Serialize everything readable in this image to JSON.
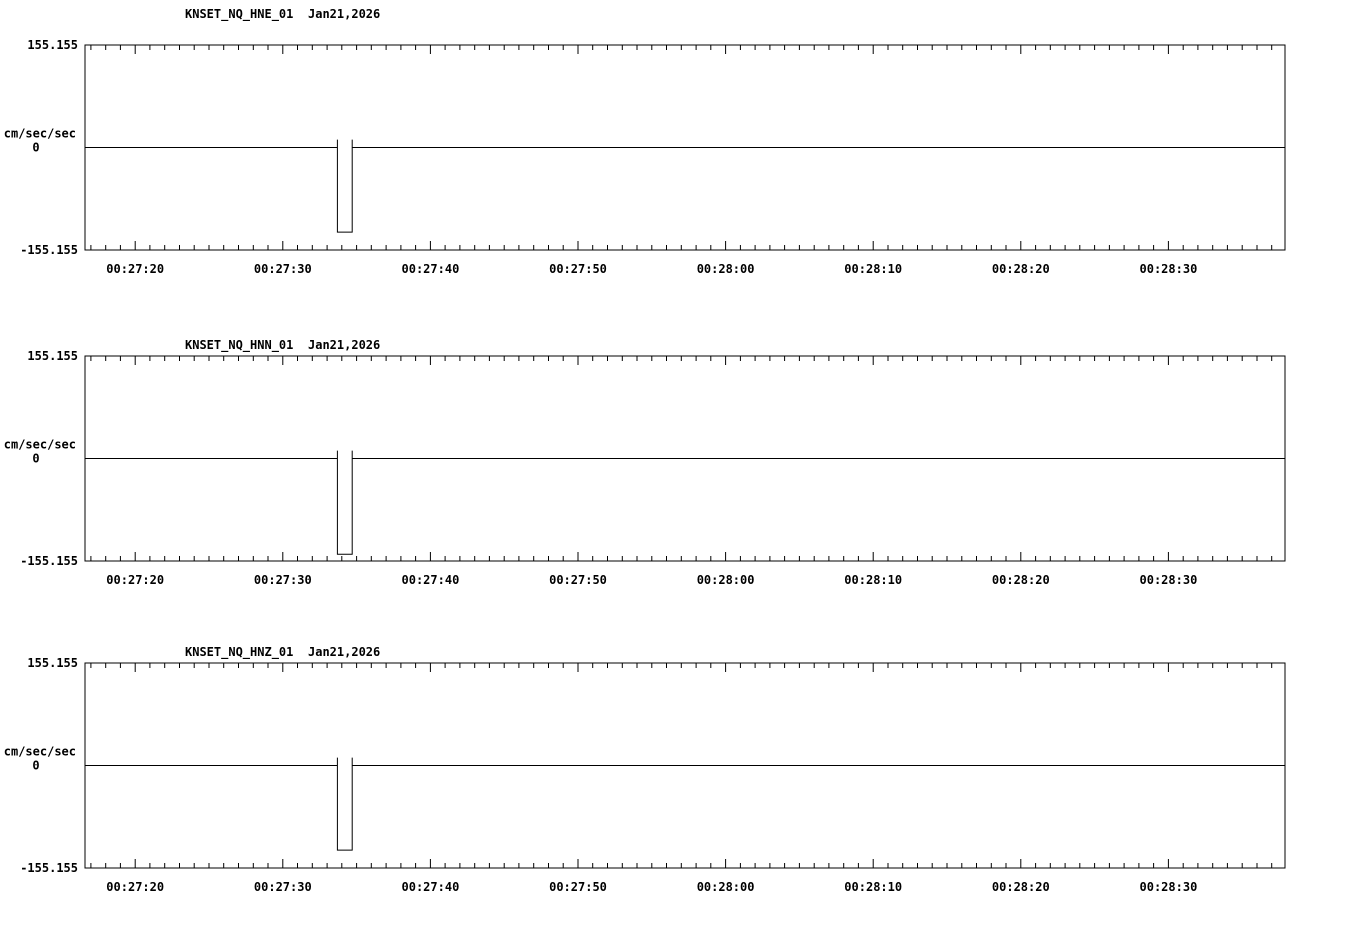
{
  "page": {
    "background": "#ffffff",
    "foreground": "#000000"
  },
  "chart_data": [
    {
      "type": "line",
      "station": "KNSET_NQ_HNE_01",
      "date": "Jan21,2026",
      "title": "KNSET_NQ_HNE_01  Jan21,2026",
      "ylabel": "cm/sec/sec",
      "ylim": [
        -155.155,
        155.155
      ],
      "y_labels": {
        "max": "155.155",
        "zero": "0",
        "min": "-155.155"
      },
      "x_range_sec": [
        1636.6,
        1717.9
      ],
      "x_minor_tick_interval_sec": 1,
      "x_major_ticks": [
        {
          "sec": 1640,
          "label": "00:27:20"
        },
        {
          "sec": 1650,
          "label": "00:27:30"
        },
        {
          "sec": 1660,
          "label": "00:27:40"
        },
        {
          "sec": 1670,
          "label": "00:27:50"
        },
        {
          "sec": 1680,
          "label": "00:28:00"
        },
        {
          "sec": 1690,
          "label": "00:28:10"
        },
        {
          "sec": 1700,
          "label": "00:28:20"
        },
        {
          "sec": 1710,
          "label": "00:28:30"
        }
      ],
      "series": [
        [
          1636.6,
          0
        ],
        [
          1653.7,
          0
        ],
        [
          1653.7,
          12
        ],
        [
          1653.7,
          -128
        ],
        [
          1654.7,
          -128
        ],
        [
          1654.7,
          12
        ],
        [
          1654.7,
          0
        ],
        [
          1717.9,
          0
        ]
      ]
    },
    {
      "type": "line",
      "station": "KNSET_NQ_HNN_01",
      "date": "Jan21,2026",
      "title": "KNSET_NQ_HNN_01  Jan21,2026",
      "ylabel": "cm/sec/sec",
      "ylim": [
        -155.155,
        155.155
      ],
      "y_labels": {
        "max": "155.155",
        "zero": "0",
        "min": "-155.155"
      },
      "x_range_sec": [
        1636.6,
        1717.9
      ],
      "x_minor_tick_interval_sec": 1,
      "x_major_ticks": [
        {
          "sec": 1640,
          "label": "00:27:20"
        },
        {
          "sec": 1650,
          "label": "00:27:30"
        },
        {
          "sec": 1660,
          "label": "00:27:40"
        },
        {
          "sec": 1670,
          "label": "00:27:50"
        },
        {
          "sec": 1680,
          "label": "00:28:00"
        },
        {
          "sec": 1690,
          "label": "00:28:10"
        },
        {
          "sec": 1700,
          "label": "00:28:20"
        },
        {
          "sec": 1710,
          "label": "00:28:30"
        }
      ],
      "series": [
        [
          1636.6,
          0
        ],
        [
          1653.7,
          0
        ],
        [
          1653.7,
          12
        ],
        [
          1653.7,
          -145
        ],
        [
          1654.7,
          -145
        ],
        [
          1654.7,
          12
        ],
        [
          1654.7,
          0
        ],
        [
          1717.9,
          0
        ]
      ]
    },
    {
      "type": "line",
      "station": "KNSET_NQ_HNZ_01",
      "date": "Jan21,2026",
      "title": "KNSET_NQ_HNZ_01  Jan21,2026",
      "ylabel": "cm/sec/sec",
      "ylim": [
        -155.155,
        155.155
      ],
      "y_labels": {
        "max": "155.155",
        "zero": "0",
        "min": "-155.155"
      },
      "x_range_sec": [
        1636.6,
        1717.9
      ],
      "x_minor_tick_interval_sec": 1,
      "x_major_ticks": [
        {
          "sec": 1640,
          "label": "00:27:20"
        },
        {
          "sec": 1650,
          "label": "00:27:30"
        },
        {
          "sec": 1660,
          "label": "00:27:40"
        },
        {
          "sec": 1670,
          "label": "00:27:50"
        },
        {
          "sec": 1680,
          "label": "00:28:00"
        },
        {
          "sec": 1690,
          "label": "00:28:10"
        },
        {
          "sec": 1700,
          "label": "00:28:20"
        },
        {
          "sec": 1710,
          "label": "00:28:30"
        }
      ],
      "series": [
        [
          1636.6,
          0
        ],
        [
          1653.7,
          0
        ],
        [
          1653.7,
          12
        ],
        [
          1653.7,
          -128
        ],
        [
          1654.7,
          -128
        ],
        [
          1654.7,
          12
        ],
        [
          1654.7,
          0
        ],
        [
          1717.9,
          0
        ]
      ]
    }
  ]
}
